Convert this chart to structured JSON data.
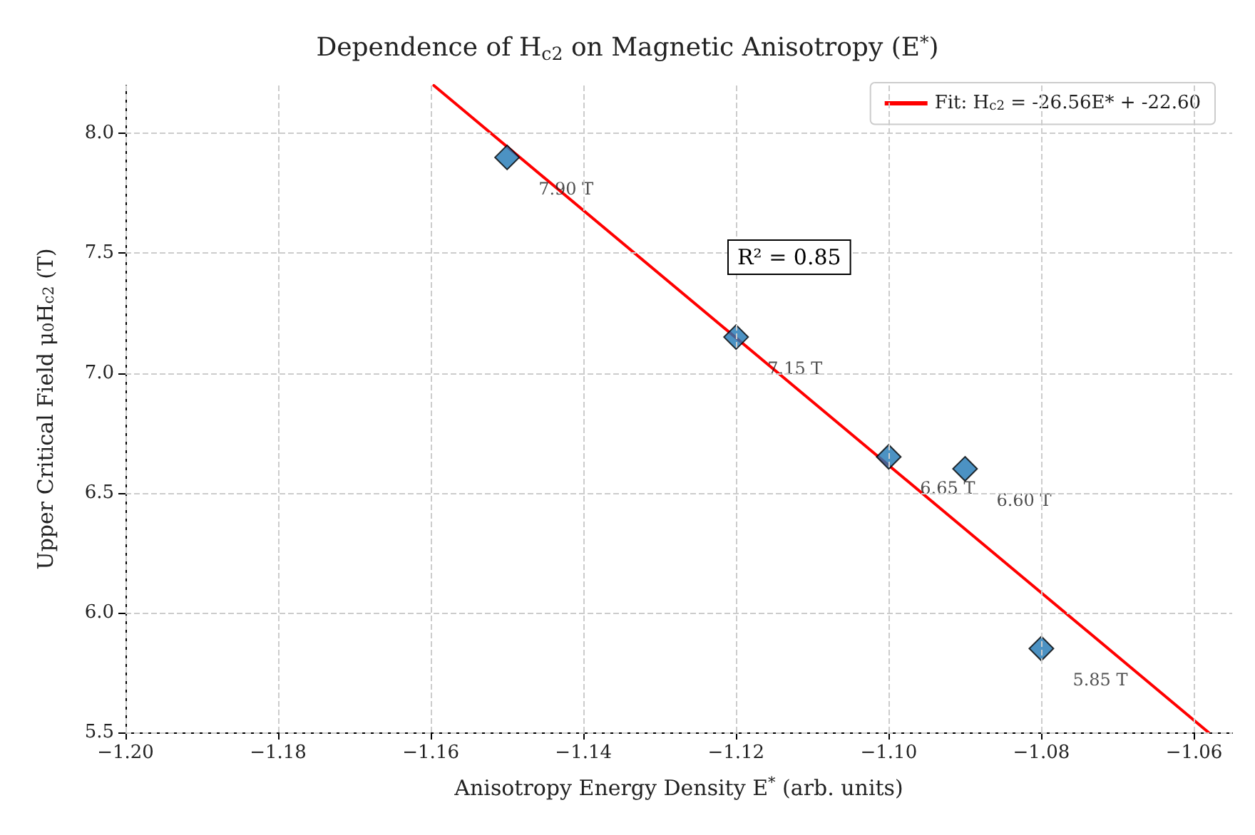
{
  "chart_data": {
    "type": "scatter",
    "title": "Dependence of H$_{c2}$ on Magnetic Anisotropy (E$^{*}$)",
    "xlabel": "Anisotropy Energy Density E$^{*}$ (arb. units)",
    "ylabel": "Upper Critical Field μ$_{0}$H$_{c2}$ (T)",
    "x": [
      -1.15,
      -1.12,
      -1.1,
      -1.09,
      -1.08
    ],
    "series": [
      {
        "type": "scatter",
        "color": "#1f77b4",
        "marker": "diamond",
        "values": [
          7.9,
          7.15,
          6.65,
          6.6,
          5.85
        ],
        "value_labels": [
          "7.90 T",
          "7.15 T",
          "6.65 T",
          "6.60 T",
          "5.85 T"
        ]
      },
      {
        "type": "line",
        "name": "Fit: H$_{c2}$ = -26.56E* + -22.60",
        "color": "#ff0000",
        "marker": "none",
        "line_style": "solid",
        "x": [
          -1.1596,
          -1.0581
        ],
        "values": [
          8.2,
          5.5
        ]
      }
    ],
    "annotations": [
      "R² = 0.85"
    ],
    "xlim": [
      -1.2,
      -1.055
    ],
    "ylim": [
      5.5,
      8.2
    ],
    "xticks": [
      {
        "value": -1.2,
        "label": "−1.20"
      },
      {
        "value": -1.18,
        "label": "−1.18"
      },
      {
        "value": -1.16,
        "label": "−1.16"
      },
      {
        "value": -1.14,
        "label": "−1.14"
      },
      {
        "value": -1.12,
        "label": "−1.12"
      },
      {
        "value": -1.1,
        "label": "−1.10"
      },
      {
        "value": -1.08,
        "label": "−1.08"
      },
      {
        "value": -1.06,
        "label": "−1.06"
      }
    ],
    "yticks": [
      5.5,
      {
        "value": 6,
        "label": "6.0"
      },
      6.5,
      {
        "value": 7,
        "label": "7.0"
      },
      7.5,
      {
        "value": 8,
        "label": "8.0"
      }
    ],
    "grid": true,
    "legend": "top right"
  }
}
